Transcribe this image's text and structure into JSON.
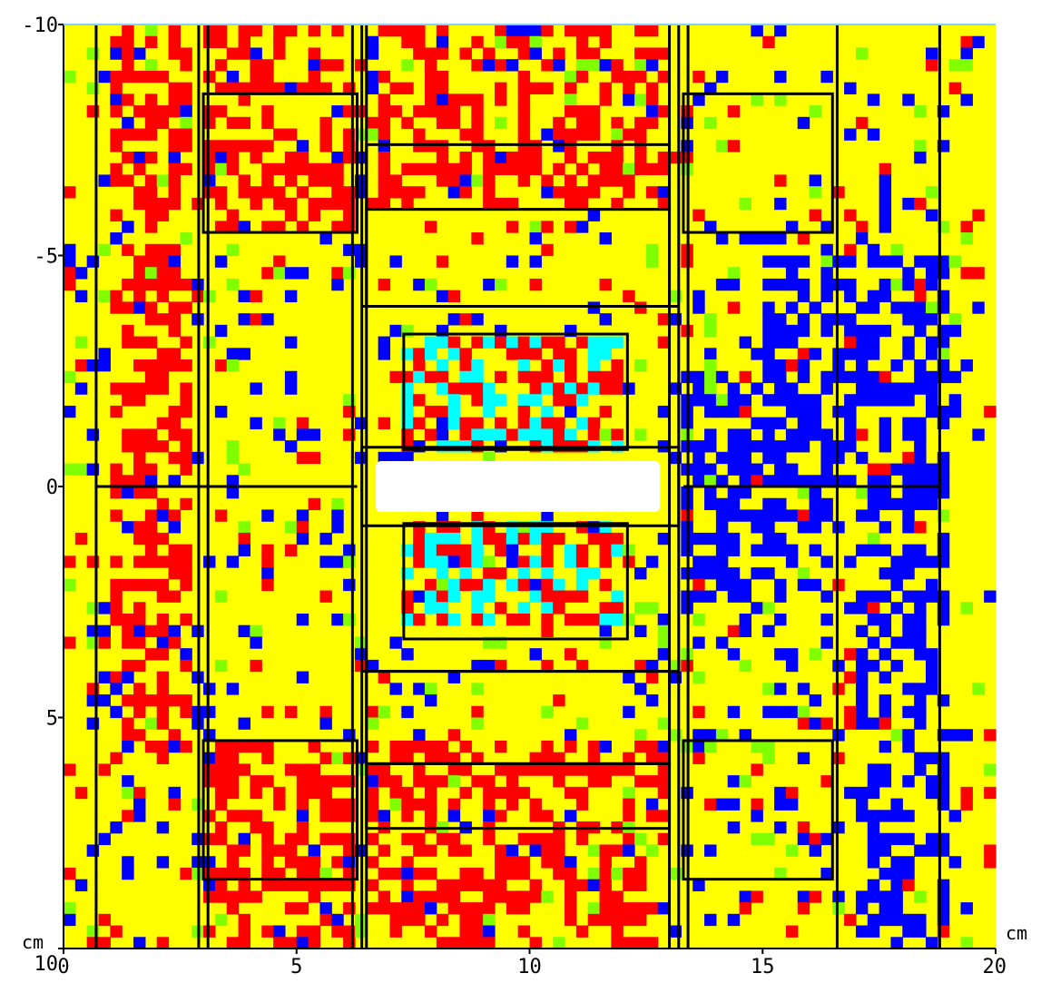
{
  "chart_data": {
    "type": "heatmap",
    "title": "",
    "x_unit_label": "cm",
    "y_unit_label": "cm",
    "xlim": [
      0,
      20
    ],
    "ylim": [
      -10,
      10
    ],
    "y_axis_inverted": true,
    "x_ticks": [
      {
        "value": 0,
        "label": "0"
      },
      {
        "value": 5,
        "label": "5"
      },
      {
        "value": 10,
        "label": "10"
      },
      {
        "value": 15,
        "label": "15"
      },
      {
        "value": 20,
        "label": "20"
      }
    ],
    "y_ticks": [
      {
        "value": -10,
        "label": "-10"
      },
      {
        "value": -5,
        "label": "-5"
      },
      {
        "value": 0,
        "label": "0"
      },
      {
        "value": 5,
        "label": "5"
      },
      {
        "value": 10,
        "label": "10"
      }
    ],
    "grid": false,
    "legend": "none",
    "palette": {
      "background": "#ffff00",
      "red": "#ff0000",
      "blue": "#0000ff",
      "green": "#7fff00",
      "cyan": "#00ffff",
      "white": "#ffffff",
      "boundary": "#000000"
    },
    "regions": [
      {
        "color": "red",
        "x": [
          1.0,
          2.7
        ],
        "y": [
          -10,
          6
        ]
      },
      {
        "color": "red",
        "x": [
          2.9,
          6.2
        ],
        "y": [
          -10,
          -5.5
        ]
      },
      {
        "color": "red",
        "x": [
          2.9,
          6.2
        ],
        "y": [
          5.5,
          10
        ]
      },
      {
        "color": "red",
        "x": [
          6.5,
          13.0
        ],
        "y": [
          -10,
          -6.0
        ]
      },
      {
        "color": "red",
        "x": [
          6.5,
          13.0
        ],
        "y": [
          5.5,
          10
        ]
      },
      {
        "color": "red",
        "x": [
          7.3,
          12.0
        ],
        "y": [
          -3.2,
          -0.8
        ]
      },
      {
        "color": "red",
        "x": [
          7.3,
          12.0
        ],
        "y": [
          0.8,
          3.0
        ]
      },
      {
        "color": "cyan",
        "x": [
          7.3,
          12.0
        ],
        "y": [
          -3.2,
          -0.8
        ]
      },
      {
        "color": "cyan",
        "x": [
          7.3,
          12.0
        ],
        "y": [
          0.8,
          3.0
        ]
      },
      {
        "color": "blue",
        "x": [
          13.2,
          16.5
        ],
        "y": [
          -2.5,
          2.5
        ]
      },
      {
        "color": "blue",
        "x": [
          15.0,
          19.0
        ],
        "y": [
          -5.0,
          0.0
        ]
      },
      {
        "color": "blue",
        "x": [
          17.0,
          19.0
        ],
        "y": [
          0,
          10
        ]
      }
    ],
    "white_region": {
      "x": [
        6.7,
        12.8
      ],
      "y": [
        -0.55,
        0.55
      ]
    },
    "boundaries": {
      "vertical_lines": [
        0.7,
        2.9,
        3.1,
        6.2,
        6.4,
        6.5,
        13.0,
        13.2,
        13.4,
        16.6,
        18.8
      ],
      "boxes": [
        {
          "x": [
            3.0,
            6.3
          ],
          "y": [
            -8.5,
            -5.5
          ]
        },
        {
          "x": [
            3.0,
            6.3
          ],
          "y": [
            5.5,
            8.5
          ]
        },
        {
          "x": [
            6.5,
            13.0
          ],
          "y": [
            -7.4,
            -6.0
          ]
        },
        {
          "x": [
            6.5,
            13.0
          ],
          "y": [
            -6.0,
            -3.9
          ]
        },
        {
          "x": [
            6.5,
            13.0
          ],
          "y": [
            4.0,
            6.0
          ]
        },
        {
          "x": [
            6.5,
            13.0
          ],
          "y": [
            6.0,
            7.4
          ]
        },
        {
          "x": [
            7.3,
            12.1
          ],
          "y": [
            -3.3,
            -0.8
          ]
        },
        {
          "x": [
            7.3,
            12.1
          ],
          "y": [
            0.8,
            3.3
          ]
        },
        {
          "x": [
            13.3,
            16.5
          ],
          "y": [
            -8.5,
            -5.5
          ]
        },
        {
          "x": [
            13.3,
            16.5
          ],
          "y": [
            5.5,
            8.5
          ]
        },
        {
          "x": [
            6.4,
            13.2
          ],
          "y": [
            -0.85,
            0.85
          ]
        }
      ],
      "horizontal_lines": [
        {
          "x": [
            0.7,
            6.3
          ],
          "y": 0
        },
        {
          "x": [
            13.3,
            18.8
          ],
          "y": 0
        },
        {
          "x": [
            6.4,
            13.2
          ],
          "y": -3.9
        },
        {
          "x": [
            6.4,
            13.2
          ],
          "y": 4.0
        }
      ]
    }
  }
}
